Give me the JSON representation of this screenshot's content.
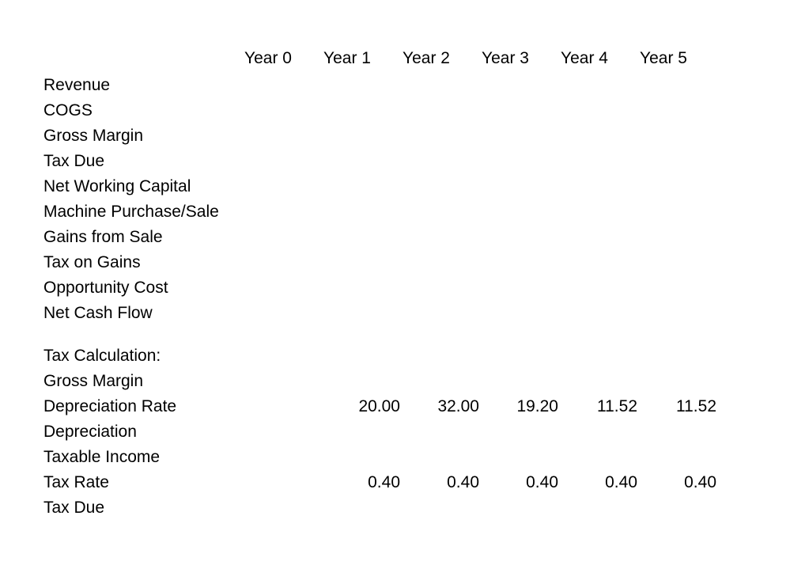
{
  "colors": {
    "text": "#000000",
    "background": "#ffffff"
  },
  "table": {
    "columns": [
      "Year 0",
      "Year 1",
      "Year 2",
      "Year 3",
      "Year 4",
      "Year 5"
    ],
    "sections": [
      {
        "name": "cash_flow",
        "rows": [
          {
            "label": "Revenue"
          },
          {
            "label": "COGS"
          },
          {
            "label": "Gross Margin"
          },
          {
            "label": "Tax Due"
          },
          {
            "label": "Net Working Capital"
          },
          {
            "label": "Machine Purchase/Sale"
          },
          {
            "label": "Gains from Sale"
          },
          {
            "label": "Tax on Gains"
          },
          {
            "label": "Opportunity Cost"
          },
          {
            "label": "Net Cash Flow"
          }
        ]
      },
      {
        "name": "tax_calculation",
        "rows": [
          {
            "label": "Tax Calculation:"
          },
          {
            "label": "Gross Margin"
          },
          {
            "label": "Depreciation Rate",
            "values": [
              "",
              "20.00",
              "32.00",
              "19.20",
              "11.52",
              "11.52"
            ]
          },
          {
            "label": "Depreciation"
          },
          {
            "label": "Taxable Income"
          },
          {
            "label": "Tax Rate",
            "values": [
              "",
              "0.40",
              "0.40",
              "0.40",
              "0.40",
              "0.40"
            ]
          },
          {
            "label": "Tax Due"
          }
        ]
      }
    ]
  }
}
